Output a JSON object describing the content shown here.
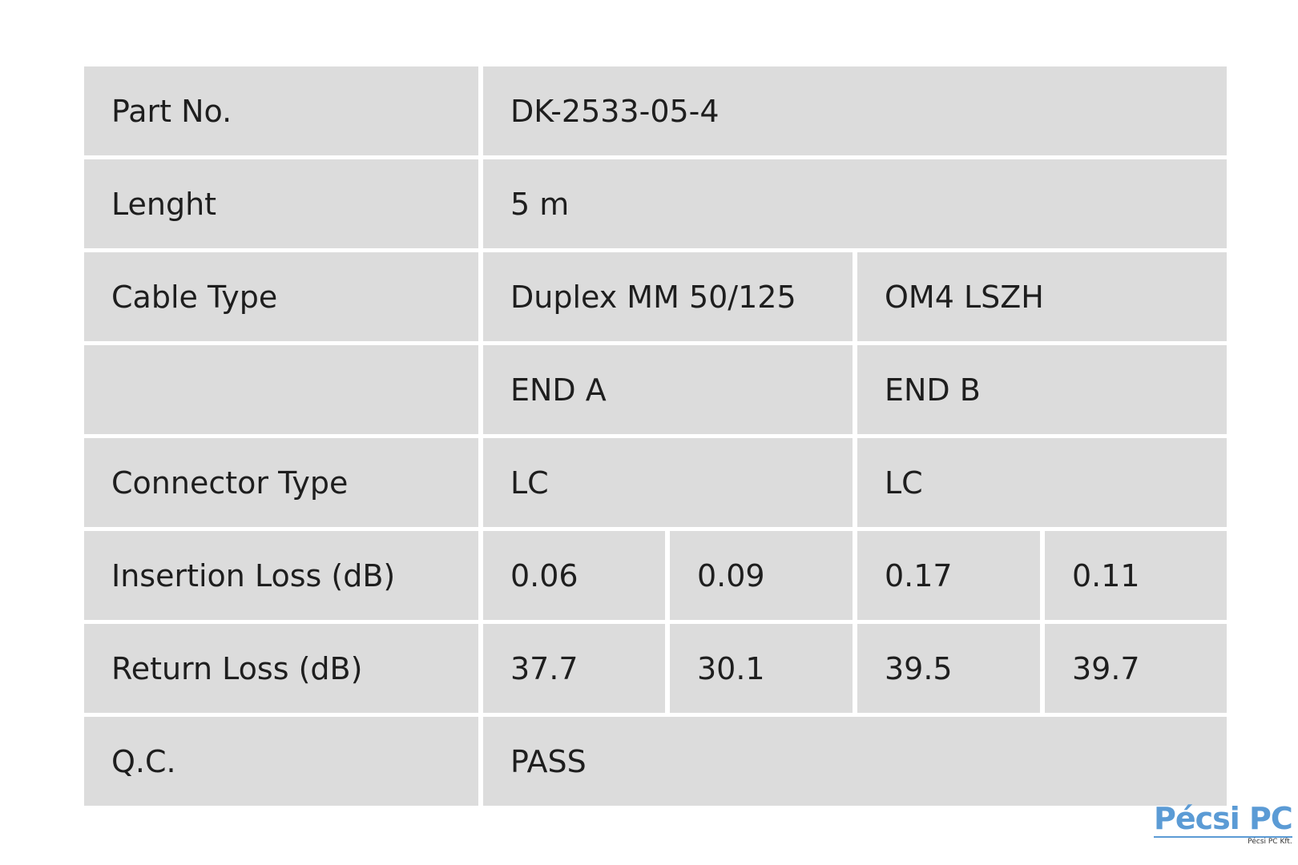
{
  "table": {
    "rows": [
      {
        "label": "Part No.",
        "cells": [
          "DK-2533-05-4"
        ]
      },
      {
        "label": "Lenght",
        "cells": [
          "5 m"
        ]
      },
      {
        "label": "Cable Type",
        "cells": [
          "Duplex MM 50/125",
          "OM4 LSZH"
        ]
      },
      {
        "cells": [
          "END A",
          "END B"
        ]
      },
      {
        "label": "Connector Type",
        "cells": [
          "LC",
          "LC"
        ]
      },
      {
        "label": "Insertion Loss (dB)",
        "cells": [
          "0.06",
          "0.09",
          "0.17",
          "0.11"
        ]
      },
      {
        "label": "Return Loss (dB)",
        "cells": [
          "37.7",
          "30.1",
          "39.5",
          "39.7"
        ]
      },
      {
        "label": "Q.C.",
        "cells": [
          "PASS"
        ]
      }
    ]
  },
  "logo": {
    "text": "Pécsi PC",
    "subtext": "Pécsi PC Kft."
  }
}
